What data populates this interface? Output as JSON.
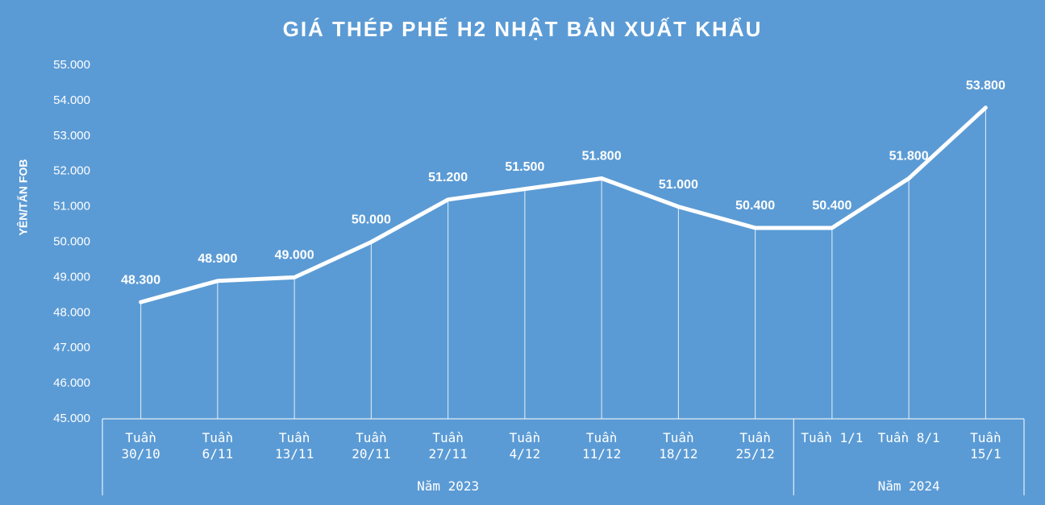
{
  "chart_data": {
    "type": "line",
    "title": "GIÁ THÉP PHẾ H2 NHẬT BẢN XUẤT KHẨU",
    "y_label": "YÊN/TẤN FOB",
    "groups": [
      {
        "name": "Năm 2023",
        "categories": [
          "Tuần\n30/10",
          "Tuần\n6/11",
          "Tuần\n13/11",
          "Tuần\n20/11",
          "Tuần\n27/11",
          "Tuần\n4/12",
          "Tuần\n11/12",
          "Tuần\n18/12",
          "Tuần\n25/12"
        ]
      },
      {
        "name": "Năm 2024",
        "categories": [
          "Tuần 1/1",
          "Tuần 8/1",
          "Tuần\n15/1"
        ]
      }
    ],
    "series": [
      {
        "color": "#ffffff",
        "values": [
          48300,
          48900,
          49000,
          50000,
          51200,
          51500,
          51800,
          51000,
          50400,
          50400,
          51800,
          53800
        ],
        "value_labels": [
          "48.300",
          "48.900",
          "49.000",
          "50.000",
          "51.200",
          "51.500",
          "51.800",
          "51.000",
          "50.400",
          "50.400",
          "51.800",
          "53.800"
        ]
      }
    ],
    "ylim": [
      45000,
      55000
    ],
    "yticks": [
      {
        "value": 45000,
        "label": "45.000"
      },
      {
        "value": 46000,
        "label": "46.000"
      },
      {
        "value": 47000,
        "label": "47.000"
      },
      {
        "value": 48000,
        "label": "48.000"
      },
      {
        "value": 49000,
        "label": "49.000"
      },
      {
        "value": 50000,
        "label": "50.000"
      },
      {
        "value": 51000,
        "label": "51.000"
      },
      {
        "value": 52000,
        "label": "52.000"
      },
      {
        "value": 53000,
        "label": "53.000"
      },
      {
        "value": 54000,
        "label": "54.000"
      },
      {
        "value": 55000,
        "label": "55.000"
      }
    ]
  }
}
